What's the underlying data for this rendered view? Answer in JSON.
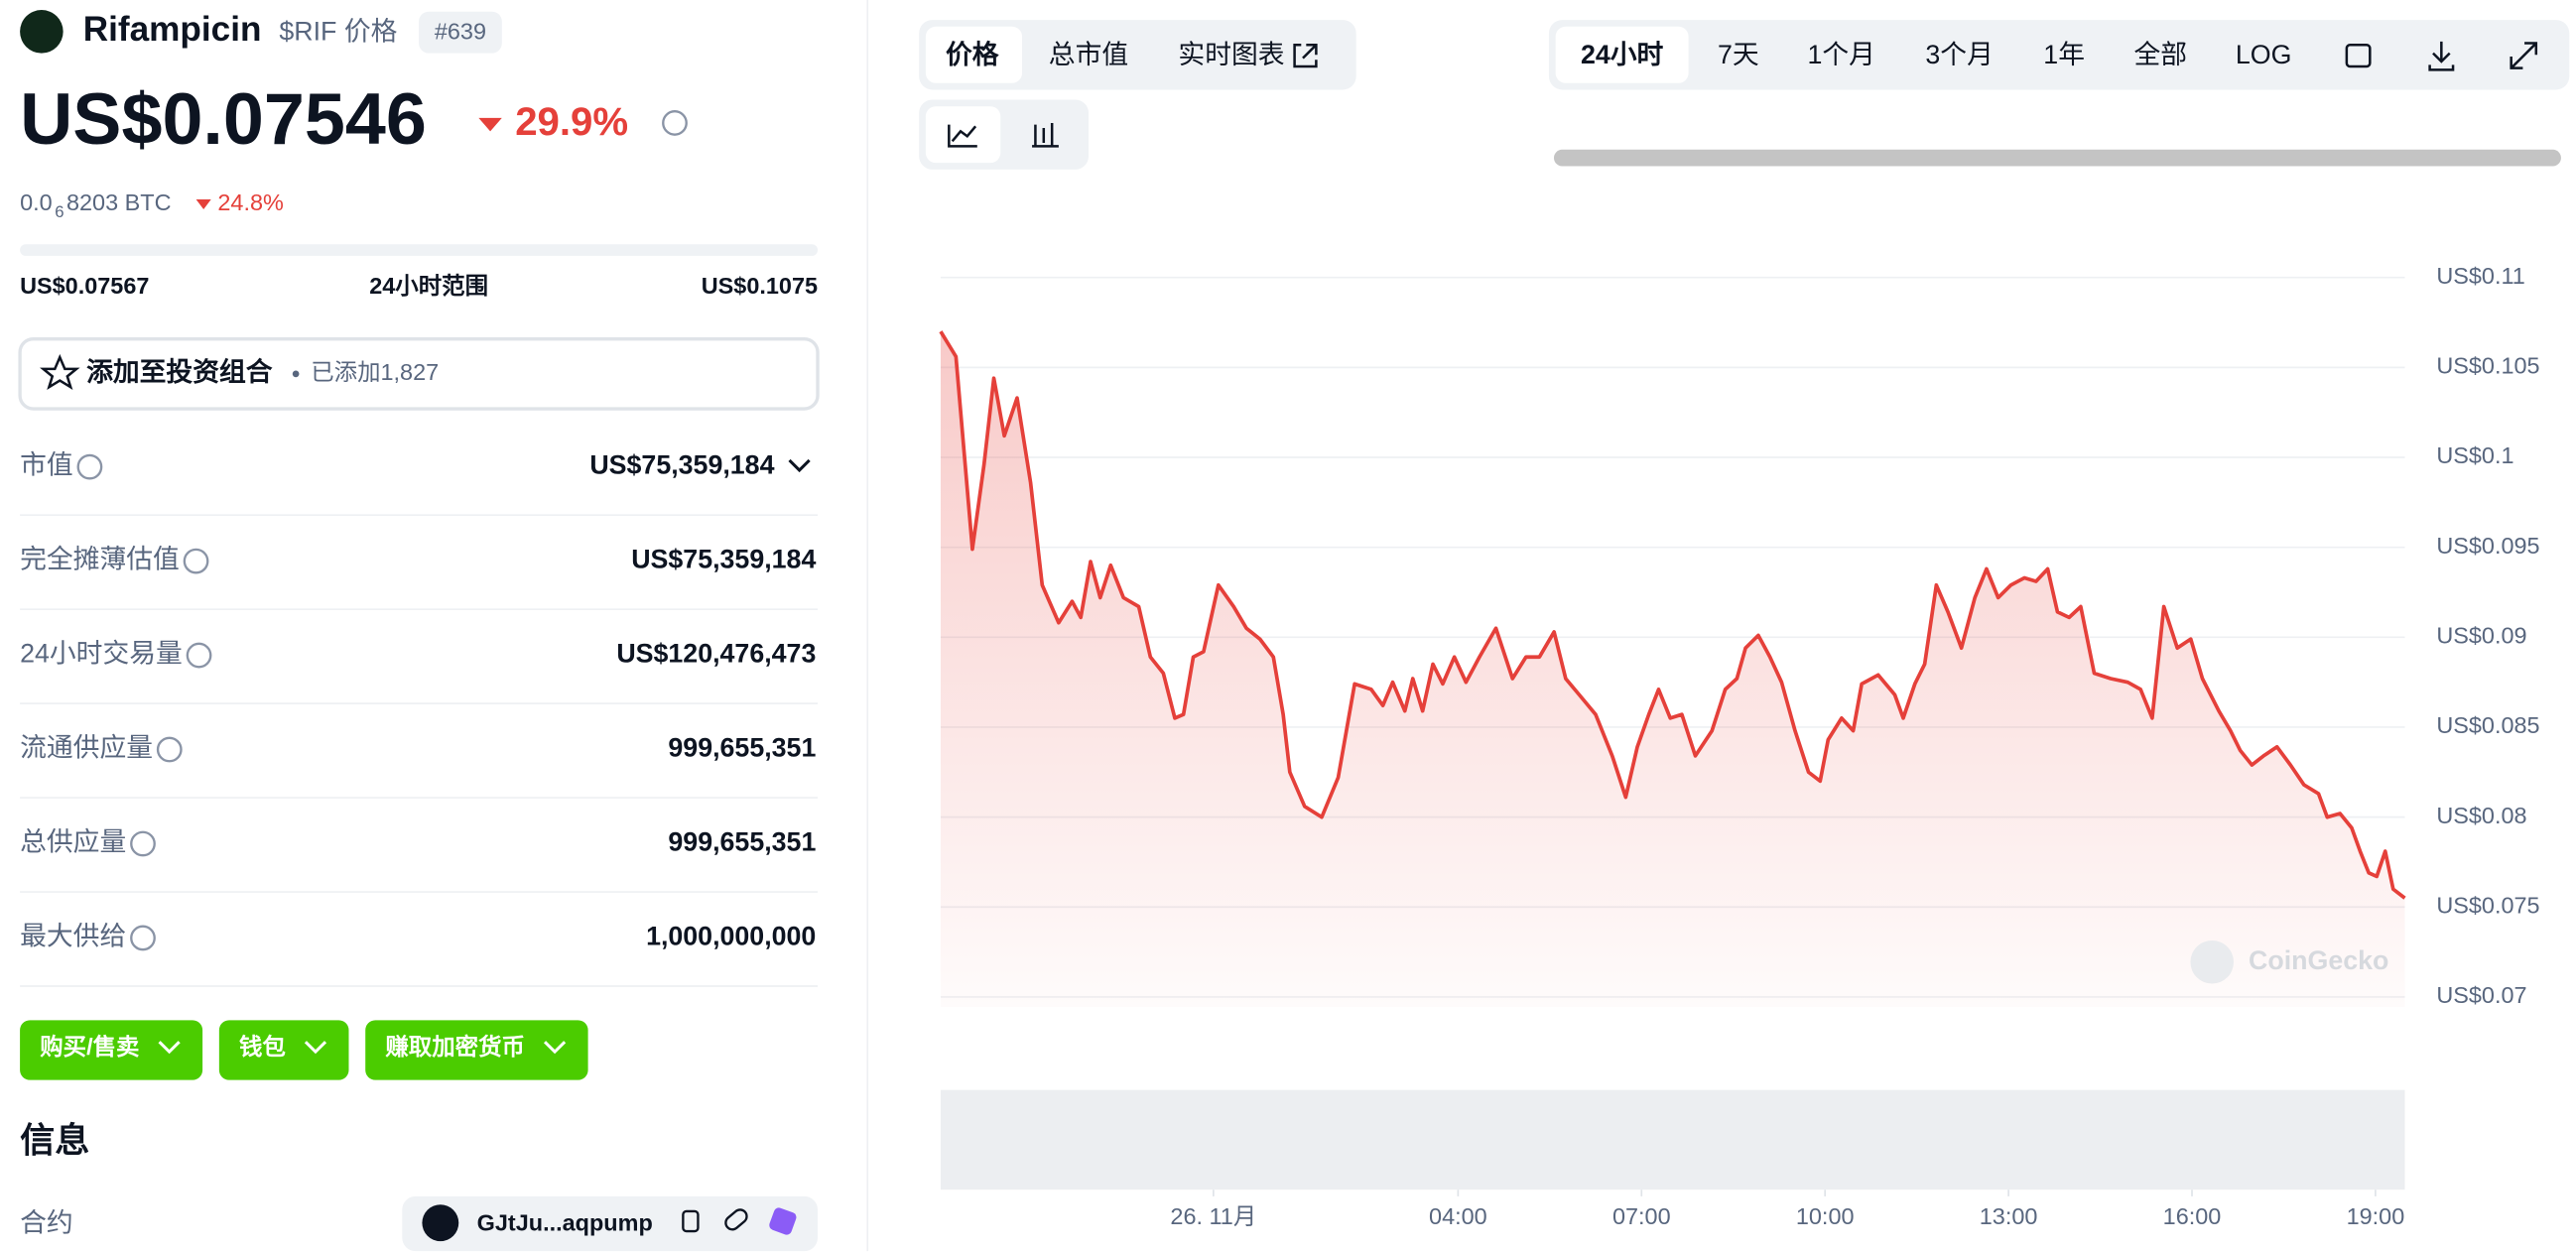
{
  "header": {
    "name": "Rifampicin",
    "symbol": "$RIF 价格",
    "rank": "#639",
    "price": "US$0.07546",
    "change": "29.9%",
    "btc_price_lead": "0.0",
    "btc_price_sub": "6",
    "btc_price_tail": "8203 BTC",
    "btc_change": "24.8%"
  },
  "range": {
    "low": "US$0.07567",
    "label": "24小时范围",
    "high": "US$0.1075"
  },
  "portfolio": {
    "button": "添加至投资组合",
    "added": "已添加1,827"
  },
  "stats": [
    [
      "市值",
      "US$75,359,184"
    ],
    [
      "完全摊薄估值",
      "US$75,359,184"
    ],
    [
      "24小时交易量",
      "US$120,476,473"
    ],
    [
      "流通供应量",
      "999,655,351"
    ],
    [
      "总供应量",
      "999,655,351"
    ],
    [
      "最大供给",
      "1,000,000,000"
    ]
  ],
  "buttons": [
    "购买/售卖",
    "钱包",
    "赚取加密货币"
  ],
  "info": {
    "title": "信息",
    "contract_label": "合约",
    "contract": "GJtJu...aqpump"
  },
  "chart_tabs": [
    "价格",
    "总市值",
    "实时图表"
  ],
  "range_tabs": [
    "24小时",
    "7天",
    "1个月",
    "3个月",
    "1年",
    "全部",
    "LOG"
  ],
  "watermark": "CoinGecko",
  "chart_data": {
    "type": "line",
    "color": "#e5403a",
    "x": [
      -4.46,
      -4.21,
      -3.94,
      -3.75,
      -3.59,
      -3.42,
      -3.21,
      -2.99,
      -2.8,
      -2.53,
      -2.31,
      -2.17,
      -2.01,
      -1.85,
      -1.68,
      -1.47,
      -1.22,
      -1.03,
      -0.82,
      -0.63,
      -0.49,
      -0.33,
      -0.16,
      0.08,
      0.33,
      0.54,
      0.76,
      0.98,
      1.14,
      1.25,
      1.49,
      1.77,
      2.04,
      2.31,
      2.58,
      2.77,
      2.93,
      3.13,
      3.26,
      3.42,
      3.59,
      3.75,
      3.94,
      4.13,
      4.35,
      4.62,
      4.89,
      5.11,
      5.33,
      5.57,
      5.76,
      5.98,
      6.25,
      6.52,
      6.74,
      6.93,
      7.12,
      7.28,
      7.47,
      7.66,
      7.88,
      8.15,
      8.37,
      8.56,
      8.7,
      8.91,
      9.1,
      9.29,
      9.51,
      9.73,
      9.92,
      10.05,
      10.27,
      10.46,
      10.6,
      10.87,
      11.14,
      11.28,
      11.47,
      11.63,
      11.82,
      12.01,
      12.23,
      12.45,
      12.64,
      12.83,
      13.04,
      13.26,
      13.45,
      13.64,
      13.8,
      13.99,
      14.18,
      14.4,
      14.67,
      14.95,
      15.16,
      15.35,
      15.54,
      15.76,
      15.98,
      16.17,
      16.44,
      16.63,
      16.79,
      16.98,
      17.17,
      17.39,
      17.61,
      17.83,
      18.07,
      18.21,
      18.42,
      18.61,
      18.75,
      18.89,
      19.02,
      19.16,
      19.29,
      19.48
    ],
    "values": [
      0.107,
      0.1056,
      0.0949,
      0.0996,
      0.1044,
      0.1012,
      0.1033,
      0.0986,
      0.0929,
      0.0908,
      0.092,
      0.0911,
      0.0942,
      0.0922,
      0.094,
      0.0922,
      0.0917,
      0.0889,
      0.088,
      0.0855,
      0.0857,
      0.0889,
      0.0892,
      0.0929,
      0.0917,
      0.0905,
      0.0899,
      0.0889,
      0.0857,
      0.0825,
      0.0806,
      0.08,
      0.0822,
      0.0874,
      0.0871,
      0.0862,
      0.0875,
      0.0859,
      0.0877,
      0.0859,
      0.0885,
      0.0874,
      0.0889,
      0.0875,
      0.0889,
      0.0905,
      0.0877,
      0.0889,
      0.0889,
      0.0903,
      0.0877,
      0.0868,
      0.0857,
      0.0834,
      0.0811,
      0.0839,
      0.0857,
      0.0871,
      0.0855,
      0.0857,
      0.0834,
      0.0848,
      0.0871,
      0.0877,
      0.0894,
      0.0901,
      0.0889,
      0.0875,
      0.0848,
      0.0825,
      0.082,
      0.0843,
      0.0855,
      0.0848,
      0.0874,
      0.0879,
      0.0868,
      0.0855,
      0.0874,
      0.0885,
      0.0929,
      0.0914,
      0.0894,
      0.0922,
      0.0938,
      0.0922,
      0.0929,
      0.0933,
      0.0931,
      0.0938,
      0.0914,
      0.0911,
      0.0917,
      0.088,
      0.0877,
      0.0875,
      0.0871,
      0.0855,
      0.0917,
      0.0894,
      0.0899,
      0.0877,
      0.0859,
      0.0848,
      0.0837,
      0.0829,
      0.0834,
      0.0839,
      0.0829,
      0.0818,
      0.0813,
      0.08,
      0.0802,
      0.0794,
      0.0781,
      0.0769,
      0.0767,
      0.0781,
      0.076,
      0.0755
    ],
    "xlim": [
      -4.46,
      19.48
    ],
    "xticks": [
      {
        "value": 0,
        "label": "26. 11月"
      },
      {
        "value": 4,
        "label": "04:00"
      },
      {
        "value": 7,
        "label": "07:00"
      },
      {
        "value": 10,
        "label": "10:00"
      },
      {
        "value": 13,
        "label": "13:00"
      },
      {
        "value": 16,
        "label": "16:00"
      },
      {
        "value": 19,
        "label": "19:00"
      }
    ],
    "ylim": [
      0.07,
      0.11
    ],
    "yticks": [
      {
        "value": 0.11,
        "label": "US$0.11"
      },
      {
        "value": 0.105,
        "label": "US$0.105"
      },
      {
        "value": 0.1,
        "label": "US$0.1"
      },
      {
        "value": 0.095,
        "label": "US$0.095"
      },
      {
        "value": 0.09,
        "label": "US$0.09"
      },
      {
        "value": 0.085,
        "label": "US$0.085"
      },
      {
        "value": 0.08,
        "label": "US$0.08"
      },
      {
        "value": 0.075,
        "label": "US$0.075"
      },
      {
        "value": 0.07,
        "label": "US$0.07"
      }
    ],
    "grid": true
  }
}
